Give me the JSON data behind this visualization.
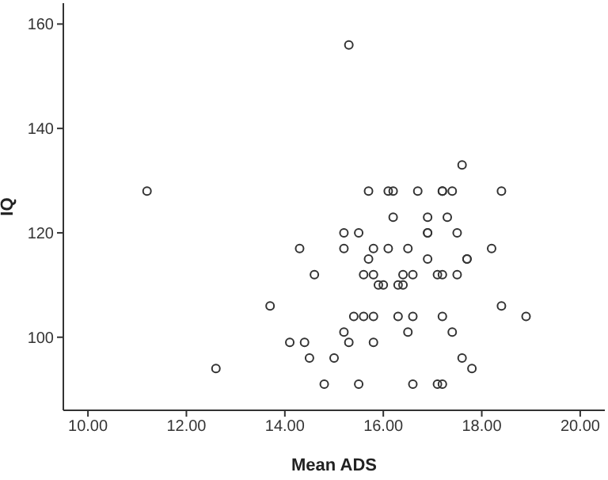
{
  "chart_data": {
    "type": "scatter",
    "xlabel": "Mean ADS",
    "ylabel": "IQ",
    "marker": "circle",
    "grid": false,
    "legend": false,
    "xlim": [
      9.5,
      20.5
    ],
    "xticks": [
      {
        "value": 10,
        "label": "10.00"
      },
      {
        "value": 12,
        "label": "12.00"
      },
      {
        "value": 14,
        "label": "14.00"
      },
      {
        "value": 16,
        "label": "16.00"
      },
      {
        "value": 18,
        "label": "18.00"
      },
      {
        "value": 20,
        "label": "20.00"
      }
    ],
    "ylim": [
      86,
      164
    ],
    "yticks": [
      100,
      120,
      140,
      160
    ],
    "series": [
      {
        "color": "#333333",
        "x": [
          11.2,
          15.3,
          12.6,
          14.3,
          14.6,
          13.7,
          14.1,
          14.4,
          14.5,
          14.8,
          17.6,
          15.7,
          16.1,
          16.2,
          16.7,
          17.2,
          17.2,
          17.4,
          18.4,
          16.2,
          16.9,
          17.3,
          15.2,
          15.5,
          16.9,
          16.9,
          17.5,
          15.2,
          15.8,
          16.1,
          16.5,
          18.2,
          15.7,
          16.9,
          17.7,
          17.7,
          15.6,
          15.8,
          16.4,
          16.6,
          17.1,
          17.2,
          17.5,
          15.9,
          16.0,
          16.3,
          16.4,
          18.4,
          15.4,
          15.6,
          15.8,
          16.3,
          16.6,
          17.2,
          18.9,
          15.2,
          16.5,
          17.4,
          15.3,
          15.8,
          15.0,
          17.6,
          17.8,
          15.5,
          16.6,
          17.1,
          17.2
        ],
        "values": [
          128,
          156,
          94,
          117,
          112,
          106,
          99,
          99,
          96,
          91,
          133,
          128,
          128,
          128,
          128,
          128,
          128,
          128,
          128,
          123,
          123,
          123,
          120,
          120,
          120,
          120,
          120,
          117,
          117,
          117,
          117,
          117,
          115,
          115,
          115,
          115,
          112,
          112,
          112,
          112,
          112,
          112,
          112,
          110,
          110,
          110,
          110,
          106,
          104,
          104,
          104,
          104,
          104,
          104,
          104,
          101,
          101,
          101,
          99,
          99,
          96,
          96,
          94,
          91,
          91,
          91,
          91
        ]
      }
    ]
  }
}
